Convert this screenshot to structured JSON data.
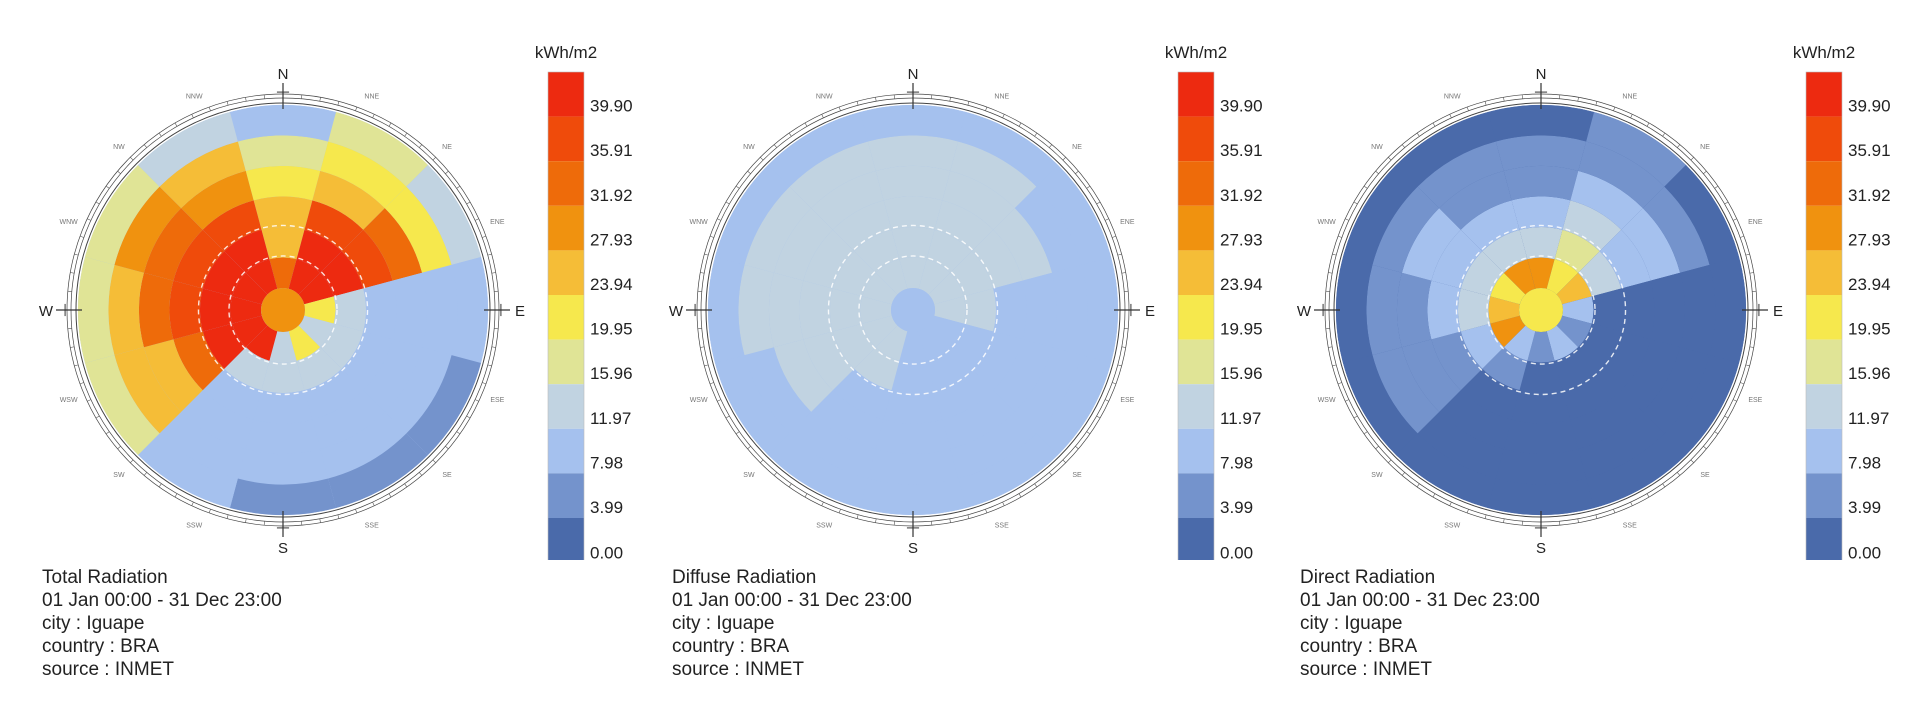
{
  "legend": {
    "unit": "kWh/m2",
    "ticks": [
      "39.90",
      "35.91",
      "31.92",
      "27.93",
      "23.94",
      "19.95",
      "15.96",
      "11.97",
      "7.98",
      "3.99",
      "0.00"
    ],
    "colors": [
      "#ed2a10",
      "#ef4b0b",
      "#ee6b0a",
      "#f0920f",
      "#f5bd37",
      "#f6e84d",
      "#e0e496",
      "#c1d3e1",
      "#a5c1ee",
      "#7493cc",
      "#4a6aaa"
    ]
  },
  "compass": {
    "cardinals": [
      "N",
      "E",
      "S",
      "W"
    ],
    "intercardinals": [
      "NNE",
      "NE",
      "ENE",
      "ESE",
      "SE",
      "SSE",
      "SSW",
      "SW",
      "WSW",
      "WNW",
      "NW",
      "NNW"
    ]
  },
  "chart_data": [
    {
      "type": "radial_heatmap",
      "title": "Total Radiation",
      "period": "01 Jan 00:00 - 31 Dec 23:00",
      "city": "city : Iguape",
      "country": "country : BRA",
      "source": "source : INMET",
      "value_range": [
        0,
        39.9
      ],
      "rings": 6,
      "sectors": 12,
      "center_value": 29,
      "values": [
        [
          30,
          40,
          40,
          20,
          12,
          20,
          12,
          40,
          40,
          40,
          40,
          40
        ],
        [
          22,
          40,
          40,
          14,
          11,
          12,
          11,
          12,
          40,
          40,
          40,
          40
        ],
        [
          24,
          36,
          35,
          10,
          9,
          9,
          9,
          10,
          30,
          34,
          33,
          33
        ],
        [
          20,
          22,
          30,
          9,
          8,
          8,
          8,
          9,
          25,
          30,
          30,
          27
        ],
        [
          16,
          20,
          20,
          9,
          8,
          8,
          8,
          9,
          22,
          25,
          26,
          24
        ],
        [
          10,
          16,
          13,
          8,
          7,
          7,
          7,
          8,
          17,
          18,
          16,
          13
        ]
      ]
    },
    {
      "type": "radial_heatmap",
      "title": "Diffuse Radiation",
      "period": "01 Jan 00:00 - 31 Dec 23:00",
      "city": "city : Iguape",
      "country": "country : BRA",
      "source": "source : INMET",
      "value_range": [
        0,
        39.9
      ],
      "rings": 6,
      "sectors": 12,
      "center_value": 9,
      "values": [
        [
          13,
          13,
          12,
          11,
          10,
          10,
          10,
          11,
          12,
          13,
          13,
          13
        ],
        [
          13,
          13,
          12,
          11,
          10,
          10,
          10,
          11,
          12,
          13,
          13,
          13
        ],
        [
          12,
          12,
          11,
          10,
          10,
          9,
          9,
          10,
          11,
          12,
          12,
          12
        ],
        [
          12,
          12,
          11,
          10,
          9,
          9,
          9,
          10,
          11,
          12,
          12,
          12
        ],
        [
          11,
          11,
          10,
          10,
          9,
          9,
          9,
          9,
          10,
          11,
          11,
          11
        ],
        [
          10,
          10,
          10,
          9,
          9,
          8,
          8,
          9,
          9,
          10,
          10,
          10
        ]
      ]
    },
    {
      "type": "radial_heatmap",
      "title": "Direct Radiation",
      "period": "01 Jan 00:00 - 31 Dec 23:00",
      "city": "city : Iguape",
      "country": "country : BRA",
      "source": "source : INMET",
      "value_range": [
        0,
        39.9
      ],
      "rings": 6,
      "sectors": 12,
      "center_value": 20,
      "values": [
        [
          28,
          20,
          22,
          8,
          5,
          8,
          5,
          10,
          28,
          22,
          20,
          28
        ],
        [
          14,
          16,
          14,
          3,
          2,
          2,
          2,
          4,
          8,
          12,
          14,
          14
        ],
        [
          10,
          12,
          10,
          2,
          1,
          1,
          1,
          2,
          6,
          8,
          10,
          10
        ],
        [
          7,
          9,
          8,
          2,
          1,
          1,
          1,
          2,
          5,
          7,
          8,
          7
        ],
        [
          5,
          7,
          6,
          2,
          1,
          1,
          1,
          2,
          4,
          6,
          6,
          5
        ],
        [
          3,
          4,
          3,
          1,
          1,
          1,
          1,
          1,
          2,
          3,
          3,
          3
        ]
      ]
    }
  ]
}
